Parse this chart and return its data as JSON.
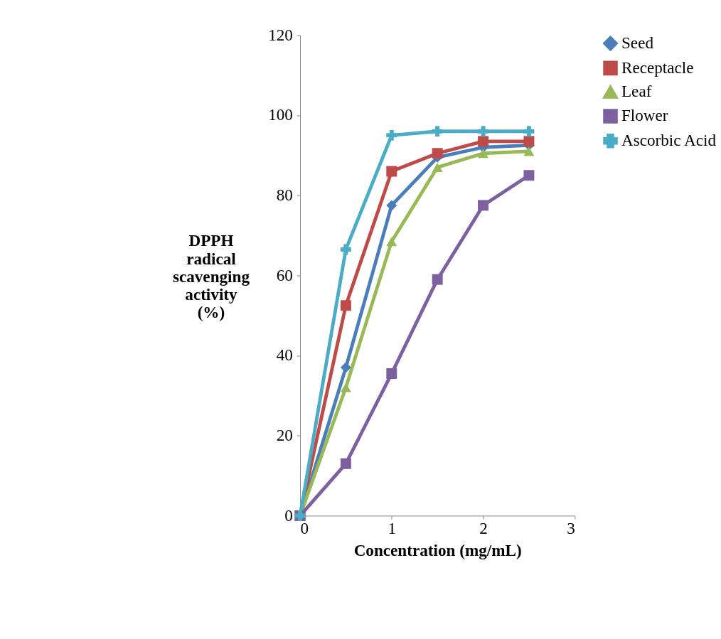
{
  "chart_data": {
    "type": "line",
    "xlabel": "Concentration (mg/mL)",
    "ylabel": "DPPH radical scavenging activity (%)",
    "x": [
      0,
      0.5,
      1,
      1.5,
      2,
      2.5
    ],
    "xlim": [
      0,
      3
    ],
    "xticks": [
      0,
      1,
      2,
      3
    ],
    "ylim": [
      0,
      120
    ],
    "yticks": [
      0,
      20,
      40,
      60,
      80,
      100,
      120
    ],
    "grid": false,
    "legend": "right",
    "line_style": "solid",
    "series": [
      {
        "name": "Seed",
        "color": "#4a7ebb",
        "marker": "diamond",
        "values": [
          0,
          37,
          77.5,
          89.5,
          92,
          92.5
        ]
      },
      {
        "name": "Receptacle",
        "color": "#be4b48",
        "marker": "square",
        "values": [
          0,
          52.5,
          86,
          90.5,
          93.5,
          93.5
        ]
      },
      {
        "name": "Leaf",
        "color": "#98b954",
        "marker": "triangle",
        "values": [
          0,
          32,
          68.5,
          87,
          90.5,
          91
        ]
      },
      {
        "name": "Flower",
        "color": "#7d60a0",
        "marker": "square",
        "values": [
          0,
          13,
          35.5,
          59,
          77.5,
          85
        ]
      },
      {
        "name": "Ascorbic Acid",
        "color": "#4bacc6",
        "marker": "cross",
        "values": [
          0,
          66.5,
          95,
          96,
          96,
          96
        ]
      }
    ]
  }
}
